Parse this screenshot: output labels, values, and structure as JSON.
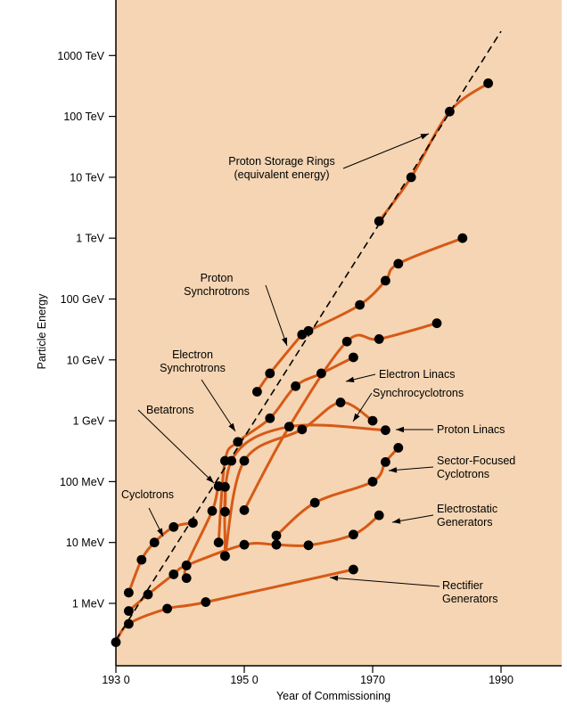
{
  "chart_data": {
    "type": "line",
    "title": "",
    "xlabel": "Year of Commissioning",
    "ylabel": "Particle Energy",
    "y_scale": "log",
    "xlim": [
      1930,
      1990
    ],
    "ylim_MeV": [
      0.3,
      3000000
    ],
    "grid": false,
    "x_ticks": [
      {
        "value": 1930,
        "label": "193 0"
      },
      {
        "value": 1950,
        "label": "195 0"
      },
      {
        "value": 1970,
        "label": "1970"
      },
      {
        "value": 1990,
        "label": "1990"
      }
    ],
    "y_ticks": [
      {
        "value": 1,
        "label": "1 MeV"
      },
      {
        "value": 10,
        "label": "10 MeV"
      },
      {
        "value": 100,
        "label": "100 MeV"
      },
      {
        "value": 1000,
        "label": "1 GeV"
      },
      {
        "value": 10000,
        "label": "10 GeV"
      },
      {
        "value": 100000,
        "label": "100 GeV"
      },
      {
        "value": 1000000,
        "label": "1 TeV"
      },
      {
        "value": 10000000,
        "label": "10 TeV"
      },
      {
        "value": 100000000,
        "label": "100 TeV"
      },
      {
        "value": 1000000000,
        "label": "1000 TeV"
      }
    ],
    "trend_line": {
      "x": [
        1930,
        1990
      ],
      "y": [
        0.25,
        2500000000
      ]
    },
    "series": [
      {
        "name": "Rectifier Generators",
        "points": [
          [
            1930,
            0.23
          ],
          [
            1932,
            0.46
          ],
          [
            1938,
            0.82
          ],
          [
            1944,
            1.05
          ],
          [
            1967,
            3.6
          ]
        ]
      },
      {
        "name": "Electrostatic Generators",
        "points": [
          [
            1932,
            0.75
          ],
          [
            1935,
            1.4
          ],
          [
            1939,
            3.0
          ],
          [
            1941,
            4.2
          ],
          [
            1950,
            9.2
          ],
          [
            1955,
            9.2
          ],
          [
            1960,
            9.0
          ],
          [
            1967,
            13.5
          ],
          [
            1971,
            28
          ]
        ]
      },
      {
        "name": "Cyclotrons",
        "points": [
          [
            1932,
            1.5
          ],
          [
            1934,
            5.2
          ],
          [
            1936,
            10
          ],
          [
            1939,
            18
          ],
          [
            1942,
            21
          ]
        ]
      },
      {
        "name": "Betatrons",
        "points": [
          [
            1941,
            2.6
          ],
          [
            1941,
            4.2
          ],
          [
            1945,
            33
          ],
          [
            1946,
            84
          ],
          [
            1947,
            82
          ],
          [
            1947,
            32
          ]
        ]
      },
      {
        "name": "Electron Synchrotrons",
        "points": [
          [
            1946,
            10
          ],
          [
            1947,
            220
          ],
          [
            1949,
            450
          ],
          [
            1954,
            1100
          ],
          [
            1958,
            3700
          ],
          [
            1962,
            6000
          ],
          [
            1967,
            11000
          ]
        ]
      },
      {
        "name": "Electron Linacs",
        "points": [
          [
            1950,
            34
          ],
          [
            1957,
            800
          ],
          [
            1966,
            20000
          ],
          [
            1971,
            22000
          ],
          [
            1980,
            40000
          ]
        ]
      },
      {
        "name": "Synchrocyclotrons",
        "points": [
          [
            1947,
            6
          ],
          [
            1950,
            220
          ],
          [
            1959,
            720
          ],
          [
            1965,
            2000
          ],
          [
            1970,
            1000
          ]
        ]
      },
      {
        "name": "Proton Linacs",
        "points": [
          [
            1947,
            6
          ],
          [
            1948,
            220
          ],
          [
            1957,
            800
          ],
          [
            1972,
            700
          ]
        ]
      },
      {
        "name": "Proton Synchrotrons",
        "points": [
          [
            1952,
            3000
          ],
          [
            1954,
            6000
          ],
          [
            1959,
            26000
          ],
          [
            1960,
            30000
          ],
          [
            1968,
            80000
          ],
          [
            1972,
            200000
          ],
          [
            1974,
            380000
          ],
          [
            1984,
            1000000
          ]
        ]
      },
      {
        "name": "Sector-Focused Cyclotrons",
        "points": [
          [
            1955,
            13
          ],
          [
            1961,
            45
          ],
          [
            1970,
            100
          ],
          [
            1972,
            210
          ],
          [
            1974,
            360
          ]
        ]
      },
      {
        "name": "Proton Storage Rings",
        "points": [
          [
            1971,
            1900000
          ],
          [
            1976,
            10000000
          ],
          [
            1982,
            120000000
          ],
          [
            1988,
            350000000
          ]
        ]
      }
    ],
    "annotations": [
      {
        "lines": [
          "Proton Storage Rings",
          "(equivalent energy)"
        ],
        "anchor": "middle",
        "pos": [
          316,
          181
        ],
        "arrow": [
          [
            385,
            189
          ],
          [
            481,
            150
          ]
        ]
      },
      {
        "lines": [
          "Proton",
          "Synchrotrons"
        ],
        "anchor": "middle",
        "pos": [
          243,
          312
        ],
        "arrow": [
          [
            298,
            320
          ],
          [
            322,
            388
          ]
        ]
      },
      {
        "lines": [
          "Electron",
          "Synchrotrons"
        ],
        "anchor": "middle",
        "pos": [
          216,
          398
        ],
        "arrow": [
          [
            226,
            426
          ],
          [
            264,
            484
          ]
        ]
      },
      {
        "lines": [
          "Electron Linacs"
        ],
        "anchor": "start",
        "pos": [
          425,
          420
        ],
        "arrow": [
          [
            421,
            420
          ],
          [
            388,
            428
          ]
        ]
      },
      {
        "lines": [
          "Synchrocyclotrons"
        ],
        "anchor": "start",
        "pos": [
          418,
          441
        ],
        "arrow": [
          [
            417,
            441
          ],
          [
            396,
            473
          ]
        ]
      },
      {
        "lines": [
          "Betatrons"
        ],
        "anchor": "start",
        "pos": [
          164,
          460
        ],
        "arrow": [
          [
            155,
            460
          ],
          [
            240,
            542
          ]
        ]
      },
      {
        "lines": [
          "Proton Linacs"
        ],
        "anchor": "start",
        "pos": [
          490,
          482
        ],
        "arrow": [
          [
            486,
            482
          ],
          [
            444,
            482
          ]
        ]
      },
      {
        "lines": [
          "Sector-Focused",
          "Cyclotrons"
        ],
        "anchor": "start",
        "pos": [
          490,
          517
        ],
        "arrow": [
          [
            486,
            524
          ],
          [
            436,
            528
          ]
        ]
      },
      {
        "lines": [
          "Cyclotrons"
        ],
        "anchor": "start",
        "pos": [
          136,
          555
        ],
        "arrow": [
          [
            167,
            570
          ],
          [
            183,
            602
          ]
        ]
      },
      {
        "lines": [
          "Electrostatic",
          "Generators"
        ],
        "anchor": "start",
        "pos": [
          490,
          571
        ],
        "arrow": [
          [
            486,
            578
          ],
          [
            440,
            586
          ]
        ]
      },
      {
        "lines": [
          "Rectifier",
          "Generators"
        ],
        "anchor": "start",
        "pos": [
          496,
          657
        ],
        "arrow": [
          [
            493,
            658
          ],
          [
            370,
            648
          ]
        ]
      }
    ]
  },
  "colors": {
    "background": "#F5D5B3",
    "curve": "#D65A17",
    "dot": "#000000",
    "trend": "#000000"
  }
}
